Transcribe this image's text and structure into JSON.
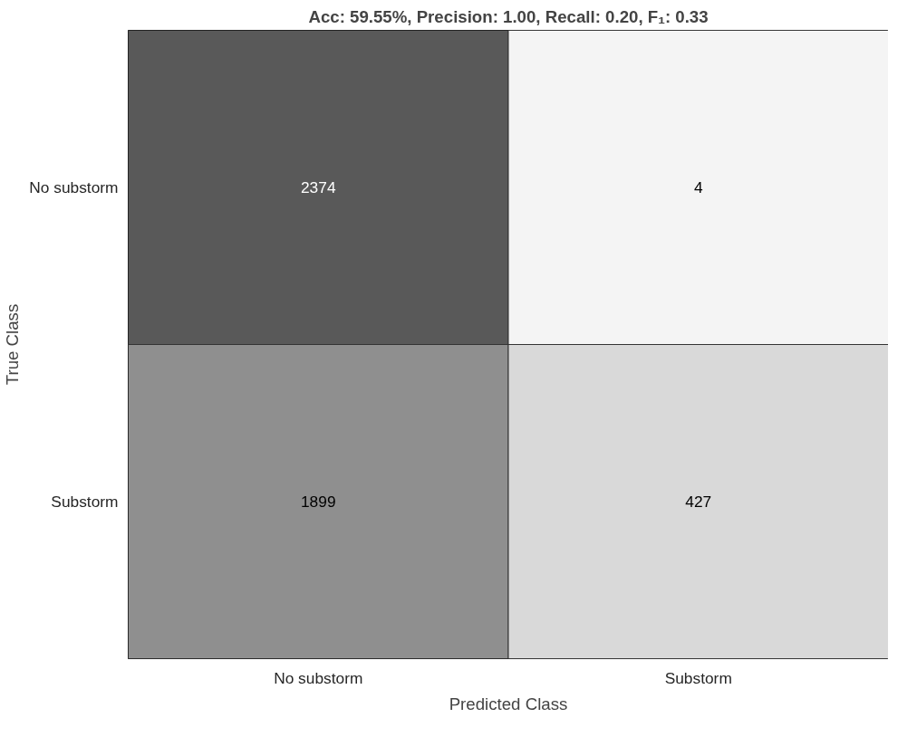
{
  "chart_data": {
    "type": "heatmap",
    "title": "Acc: 59.55%, Precision: 1.00, Recall: 0.20, F₁: 0.33",
    "xlabel": "Predicted Class",
    "ylabel": "True Class",
    "categories": [
      "No substorm",
      "Substorm"
    ],
    "y_categories": [
      "No substorm",
      "Substorm"
    ],
    "cells": [
      [
        2374,
        4
      ],
      [
        1899,
        427
      ]
    ],
    "colors": [
      [
        "#595959",
        "#f4f4f4"
      ],
      [
        "#8f8f8f",
        "#d9d9d9"
      ]
    ],
    "data_labels": true,
    "grid": false
  }
}
